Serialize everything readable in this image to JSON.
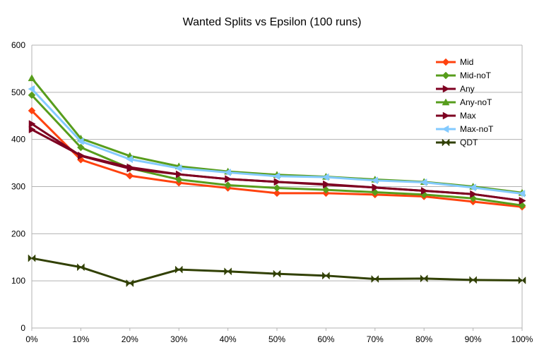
{
  "chart_data": {
    "type": "line",
    "title": "Wanted Splits vs Epsilon (100 runs)",
    "xlabel": "",
    "ylabel": "",
    "categories": [
      "0%",
      "10%",
      "20%",
      "30%",
      "40%",
      "50%",
      "60%",
      "70%",
      "80%",
      "90%",
      "100%"
    ],
    "ylim": [
      0,
      600
    ],
    "yticks": [
      0,
      100,
      200,
      300,
      400,
      500,
      600
    ],
    "grid": "horizontal",
    "legend_position": "top-right",
    "series": [
      {
        "name": "Mid",
        "color": "#ff420e",
        "marker": "diamond",
        "values": [
          461,
          357,
          323,
          308,
          297,
          286,
          286,
          283,
          279,
          268,
          257
        ]
      },
      {
        "name": "Mid-noT",
        "color": "#579d1c",
        "marker": "diamond",
        "values": [
          494,
          383,
          339,
          315,
          303,
          297,
          293,
          288,
          283,
          275,
          260
        ]
      },
      {
        "name": "Any",
        "color": "#7e0021",
        "marker": "triangle-right",
        "values": [
          433,
          365,
          338,
          326,
          316,
          310,
          305,
          298,
          291,
          284,
          270
        ]
      },
      {
        "name": "Any-noT",
        "color": "#579d1c",
        "marker": "triangle-up",
        "values": [
          530,
          402,
          365,
          343,
          332,
          325,
          321,
          315,
          310,
          300,
          287
        ]
      },
      {
        "name": "Max",
        "color": "#7e0021",
        "marker": "triangle-right",
        "values": [
          421,
          366,
          341,
          326,
          316,
          310,
          304,
          298,
          291,
          284,
          270
        ]
      },
      {
        "name": "Max-noT",
        "color": "#83caff",
        "marker": "triangle-left",
        "values": [
          507,
          396,
          358,
          339,
          330,
          322,
          320,
          313,
          309,
          298,
          285
        ]
      },
      {
        "name": "QDT",
        "color": "#314004",
        "marker": "bowtie",
        "values": [
          148,
          129,
          95,
          124,
          120,
          115,
          111,
          104,
          105,
          102,
          101
        ]
      }
    ]
  }
}
